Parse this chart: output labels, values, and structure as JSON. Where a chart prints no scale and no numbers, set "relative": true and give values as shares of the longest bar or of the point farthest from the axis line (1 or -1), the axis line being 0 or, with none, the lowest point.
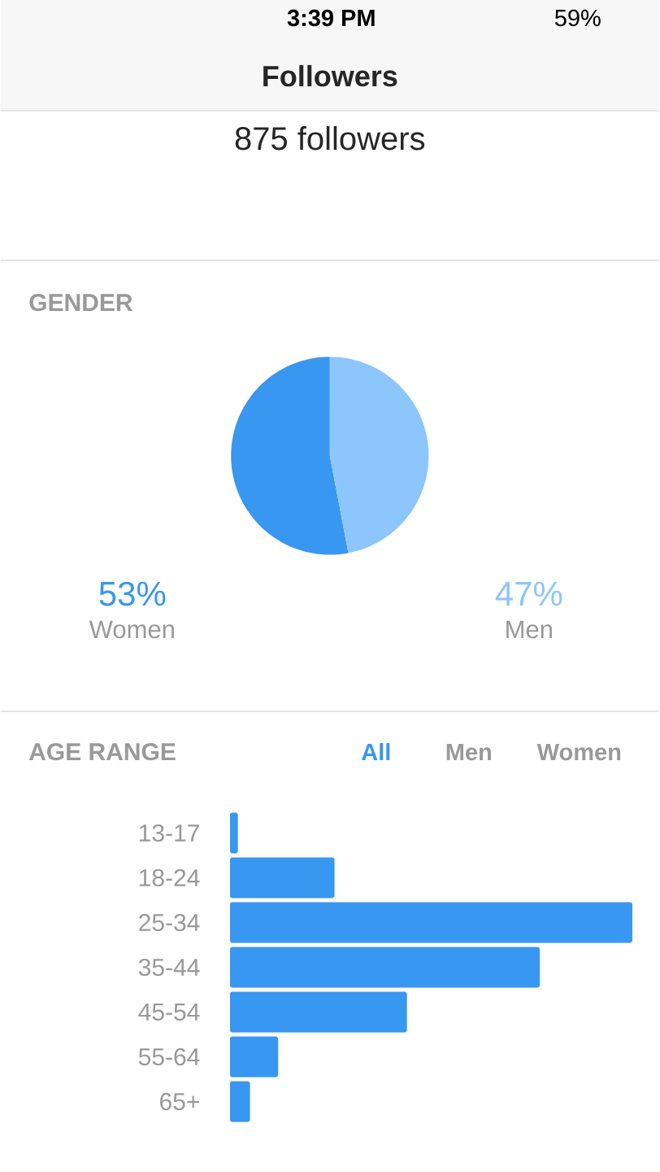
{
  "chart_data": [
    {
      "type": "other",
      "title": "Followers",
      "subtitle": "875 followers",
      "annotations": [
        "3:39 PM",
        "59%"
      ]
    },
    {
      "type": "pie",
      "title": "GENDER",
      "categories": [
        "Women",
        "Men"
      ],
      "values": [
        53,
        47
      ],
      "colors": [
        "#3897f0",
        "#8cc6fc"
      ],
      "value_labels": [
        "53%",
        "47%"
      ]
    },
    {
      "type": "bar",
      "orientation": "horizontal",
      "relative": true,
      "title": "AGE RANGE",
      "categories": [
        "13-17",
        "18-24",
        "25-34",
        "35-44",
        "45-54",
        "55-64",
        "65+"
      ],
      "values": [
        0.02,
        0.26,
        1,
        0.77,
        0.44,
        0.12,
        0.05
      ],
      "color": "#3897f0",
      "annotations": [
        "All",
        "Men",
        "Women"
      ]
    }
  ]
}
